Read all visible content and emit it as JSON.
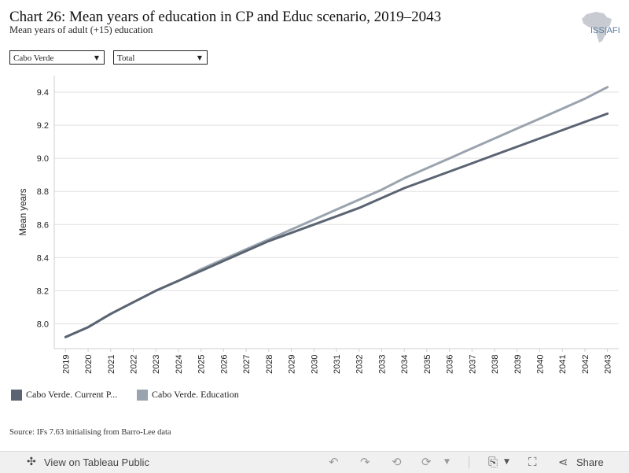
{
  "header": {
    "title": "Chart 26: Mean years of education in CP and Educ scenario, 2019–2043",
    "subtitle": "Mean years of adult (+15) education",
    "logo_text": "ISS|AFI"
  },
  "filters": {
    "country": "Cabo Verde",
    "group": "Total"
  },
  "source": "Source: IFs 7.63 initialising from Barro-Lee data",
  "toolbar": {
    "view_label": "View on Tableau Public",
    "share_label": "Share"
  },
  "chart_data": {
    "type": "line",
    "title": "Chart 26: Mean years of education in CP and Educ scenario, 2019–2043",
    "ylabel": "Mean years",
    "xlabel": "",
    "x": [
      2019,
      2020,
      2021,
      2022,
      2023,
      2024,
      2025,
      2026,
      2027,
      2028,
      2029,
      2030,
      2031,
      2032,
      2033,
      2034,
      2035,
      2036,
      2037,
      2038,
      2039,
      2040,
      2041,
      2042,
      2043
    ],
    "ylim": [
      7.85,
      9.5
    ],
    "yticks": [
      8.0,
      8.2,
      8.4,
      8.6,
      8.8,
      9.0,
      9.2,
      9.4
    ],
    "grid": true,
    "legend_position": "bottom",
    "series": [
      {
        "name": "Cabo Verde. Current P...",
        "color": "#5a6472",
        "values": [
          7.92,
          7.98,
          8.06,
          8.13,
          8.2,
          8.26,
          8.32,
          8.38,
          8.44,
          8.5,
          8.55,
          8.6,
          8.65,
          8.7,
          8.76,
          8.82,
          8.87,
          8.92,
          8.97,
          9.02,
          9.07,
          9.12,
          9.17,
          9.22,
          9.27
        ]
      },
      {
        "name": "Cabo Verde. Education",
        "color": "#9aa4ae",
        "values": [
          7.92,
          7.98,
          8.06,
          8.13,
          8.2,
          8.26,
          8.33,
          8.39,
          8.45,
          8.51,
          8.57,
          8.63,
          8.69,
          8.75,
          8.81,
          8.88,
          8.94,
          9.0,
          9.06,
          9.12,
          9.18,
          9.24,
          9.3,
          9.36,
          9.43
        ]
      }
    ]
  }
}
